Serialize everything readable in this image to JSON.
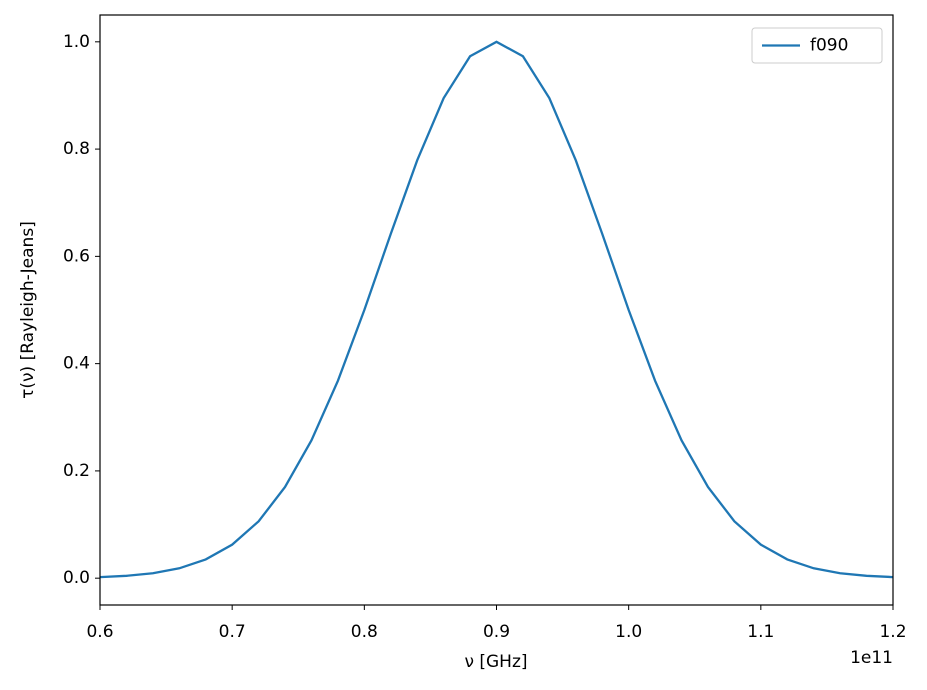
{
  "chart_data": {
    "type": "line",
    "xlabel": "ν [GHz]",
    "ylabel": "τ(ν) [Rayleigh-Jeans]",
    "x_offset_label": "1e11",
    "x": [
      0.6,
      0.62,
      0.64,
      0.66,
      0.68,
      0.7,
      0.72,
      0.74,
      0.76,
      0.78,
      0.8,
      0.82,
      0.84,
      0.86,
      0.88,
      0.9,
      0.92,
      0.94,
      0.96,
      0.98,
      1.0,
      1.02,
      1.04,
      1.06,
      1.08,
      1.1,
      1.12,
      1.14,
      1.16,
      1.18,
      1.2
    ],
    "series": [
      {
        "name": "f090",
        "color": "#1f77b4",
        "values": [
          0.002,
          0.0044,
          0.0092,
          0.0184,
          0.035,
          0.0625,
          0.106,
          0.17,
          0.257,
          0.368,
          0.5,
          0.642,
          0.779,
          0.895,
          0.973,
          1.0,
          0.973,
          0.895,
          0.779,
          0.642,
          0.5,
          0.368,
          0.257,
          0.17,
          0.106,
          0.0625,
          0.035,
          0.0184,
          0.0092,
          0.0044,
          0.002
        ]
      }
    ],
    "xlim": [
      0.6,
      1.2
    ],
    "ylim": [
      -0.05,
      1.05
    ],
    "xticks": [
      0.6,
      0.7,
      0.8,
      0.9,
      {
        "value": 1.0,
        "label": "1.0"
      },
      1.1,
      1.2
    ],
    "yticks": [
      {
        "value": 0.0,
        "label": "0.0"
      },
      0.2,
      0.4,
      0.6,
      0.8,
      {
        "value": 1.0,
        "label": "1.0"
      }
    ],
    "grid": false,
    "legend": "upper right"
  }
}
